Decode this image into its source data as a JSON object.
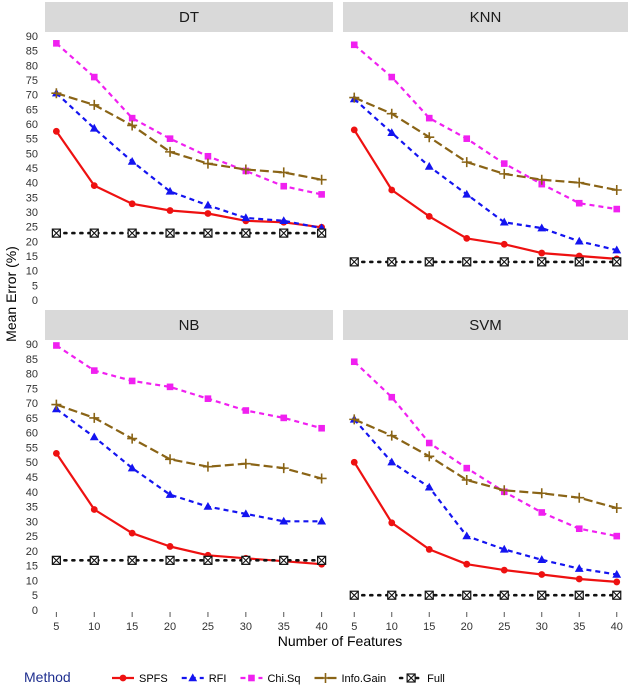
{
  "chart_data": {
    "type": "line",
    "xlabel": "Number of Features",
    "ylabel": "Mean Error (%)",
    "x": [
      5,
      10,
      15,
      20,
      25,
      30,
      35,
      40
    ],
    "ylim": [
      0,
      90
    ],
    "yticks": [
      0,
      5,
      10,
      15,
      20,
      25,
      30,
      35,
      40,
      45,
      50,
      55,
      60,
      65,
      70,
      75,
      80,
      85,
      90
    ],
    "legend": {
      "title": "Method",
      "placement": "bottom",
      "entries": [
        {
          "name": "SPFS",
          "color": "#ee1111",
          "marker": "circle",
          "dash": "solid"
        },
        {
          "name": "RFI",
          "color": "#1414f0",
          "marker": "triangle",
          "dash": "dashed"
        },
        {
          "name": "Chi.Sq",
          "color": "#f020f0",
          "marker": "square",
          "dash": "dashed"
        },
        {
          "name": "Info.Gain",
          "color": "#8a6416",
          "marker": "plus",
          "dash": "longdash"
        },
        {
          "name": "Full",
          "color": "#111111",
          "marker": "boxx",
          "dash": "dotted"
        }
      ]
    },
    "panels": [
      {
        "title": "DT",
        "series": [
          {
            "name": "SPFS",
            "values": [
              57.5,
              39,
              32.8,
              30.5,
              29.5,
              27,
              26.5,
              24.8
            ]
          },
          {
            "name": "RFI",
            "values": [
              70.5,
              58.5,
              47.2,
              37,
              32.3,
              28,
              27,
              24.5
            ]
          },
          {
            "name": "Chi.Sq",
            "values": [
              87.5,
              76,
              62,
              55,
              49,
              44,
              38.8,
              36
            ]
          },
          {
            "name": "Info.Gain",
            "values": [
              70.5,
              66.5,
              59.5,
              50.5,
              46.5,
              44.5,
              43.5,
              41
            ]
          },
          {
            "name": "Full",
            "values": [
              22.8,
              22.8,
              22.8,
              22.8,
              22.8,
              22.8,
              22.8,
              22.8
            ]
          }
        ]
      },
      {
        "title": "KNN",
        "series": [
          {
            "name": "SPFS",
            "values": [
              58,
              37.5,
              28.5,
              21,
              19,
              16,
              15,
              14
            ]
          },
          {
            "name": "RFI",
            "values": [
              68.5,
              57,
              45.5,
              36,
              26.5,
              24.5,
              20,
              17
            ]
          },
          {
            "name": "Chi.Sq",
            "values": [
              87,
              76,
              62,
              55,
              46.5,
              39.5,
              33,
              31
            ]
          },
          {
            "name": "Info.Gain",
            "values": [
              69,
              63.5,
              55.5,
              47,
              43,
              41,
              40,
              37.5
            ]
          },
          {
            "name": "Full",
            "values": [
              13,
              13,
              13,
              13,
              13,
              13,
              13,
              13
            ]
          }
        ]
      },
      {
        "title": "NB",
        "series": [
          {
            "name": "SPFS",
            "values": [
              53,
              34,
              26,
              21.5,
              18.5,
              17.5,
              16.5,
              15.5
            ]
          },
          {
            "name": "RFI",
            "values": [
              68,
              58.5,
              48,
              39,
              35,
              32.5,
              30,
              30
            ]
          },
          {
            "name": "Chi.Sq",
            "values": [
              89.5,
              81,
              77.5,
              75.5,
              71.5,
              67.5,
              65,
              61.5
            ]
          },
          {
            "name": "Info.Gain",
            "values": [
              69.5,
              65,
              58,
              51,
              48.5,
              49.5,
              48,
              44.5
            ]
          },
          {
            "name": "Full",
            "values": [
              16.8,
              16.8,
              16.8,
              16.8,
              16.8,
              16.8,
              16.8,
              16.8
            ]
          }
        ]
      },
      {
        "title": "SVM",
        "series": [
          {
            "name": "SPFS",
            "values": [
              50,
              29.5,
              20.5,
              15.5,
              13.5,
              12,
              10.5,
              9.5
            ]
          },
          {
            "name": "RFI",
            "values": [
              64.5,
              50,
              41.5,
              25,
              20.5,
              17,
              14,
              12
            ]
          },
          {
            "name": "Chi.Sq",
            "values": [
              84,
              72,
              56.5,
              48,
              40,
              33,
              27.5,
              25
            ]
          },
          {
            "name": "Info.Gain",
            "values": [
              64.5,
              59,
              52,
              44,
              40.5,
              39.5,
              38,
              34.5
            ]
          },
          {
            "name": "Full",
            "values": [
              5,
              5,
              5,
              5,
              5,
              5,
              5,
              5
            ]
          }
        ]
      }
    ]
  }
}
